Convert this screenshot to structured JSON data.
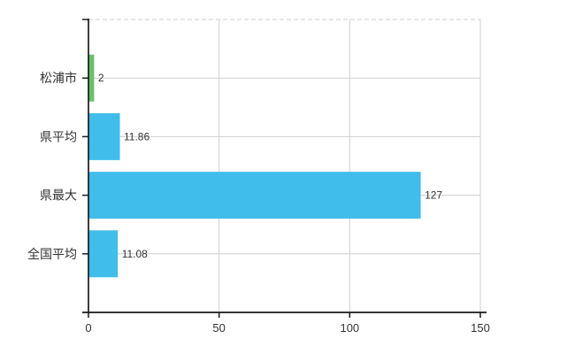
{
  "chart_data": {
    "type": "bar",
    "orientation": "horizontal",
    "title": "",
    "categories": [
      "松浦市",
      "県平均",
      "県最大",
      "全国平均"
    ],
    "values": [
      2,
      11.86,
      127,
      11.08
    ],
    "value_labels": [
      "2",
      "11.86",
      "127",
      "11.08"
    ],
    "bar_colors": [
      "#67C167",
      "#41BDEB",
      "#41BDEB",
      "#41BDEB"
    ],
    "x_ticks": [
      0,
      50,
      100,
      150
    ],
    "x_tick_labels": [
      "0",
      "50",
      "100",
      "150"
    ],
    "xlim": [
      0,
      150
    ],
    "xlabel": "",
    "ylabel": "",
    "grid": true,
    "legend": "none"
  },
  "colors": {
    "bar_blue": "#41BDEB",
    "bar_green": "#67C167",
    "gridline": "#cfcfcf",
    "plot_border": "#cccccc",
    "axis": "#1a1a1a",
    "category_text": "#333333",
    "value_text": "#333333",
    "tick_text": "#333333",
    "background": "#ffffff"
  }
}
